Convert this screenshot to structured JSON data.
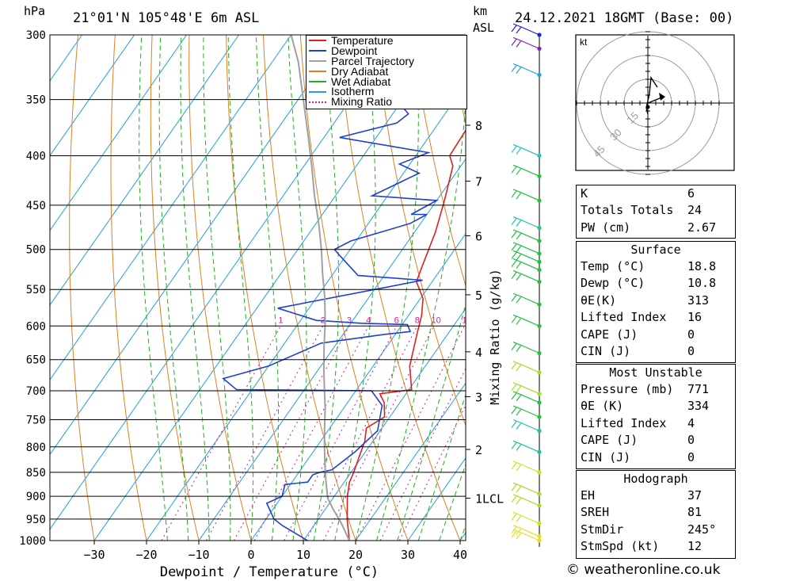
{
  "header": {
    "hpa": "hPa",
    "location": "21°01'N 105°48'E 6m ASL",
    "km": "km",
    "asl": "ASL",
    "datetime": "24.12.2021 18GMT (Base: 00)"
  },
  "chart_data": {
    "type": "line",
    "xlabel": "Dewpoint / Temperature (°C)",
    "ylabel": "hPa",
    "right_label": "Mixing Ratio (g/kg)",
    "xlim": [
      -40,
      40
    ],
    "ylim": [
      1000,
      300
    ],
    "x_ticks": [
      -30,
      -20,
      -10,
      0,
      10,
      20,
      30,
      40
    ],
    "x_tick_labels": [
      "−30",
      "−20",
      "−10",
      "0",
      "10",
      "20",
      "30",
      "40"
    ],
    "pressure_levels": [
      300,
      350,
      400,
      450,
      500,
      550,
      600,
      650,
      700,
      750,
      800,
      850,
      900,
      950,
      1000
    ],
    "km_ticks": [
      {
        "label": "8",
        "p": 372
      },
      {
        "label": "7",
        "p": 425
      },
      {
        "label": "6",
        "p": 484
      },
      {
        "label": "5",
        "p": 557
      },
      {
        "label": "4",
        "p": 638
      },
      {
        "label": "3",
        "p": 710
      },
      {
        "label": "2",
        "p": 805
      },
      {
        "label": "1LCL",
        "p": 904
      }
    ],
    "mixing_ratio_labels": [
      "1",
      "2",
      "3",
      "4",
      "6",
      "8",
      "10",
      "15",
      "20",
      "25"
    ],
    "legend": [
      {
        "name": "Temperature",
        "color": "#e02020"
      },
      {
        "name": "Dewpoint",
        "color": "#2040d0"
      },
      {
        "name": "Parcel Trajectory",
        "color": "#a0a0a0"
      },
      {
        "name": "Dry Adiabat",
        "color": "#e08020"
      },
      {
        "name": "Wet Adiabat",
        "color": "#20b020"
      },
      {
        "name": "Isotherm",
        "color": "#20a0e0"
      },
      {
        "name": "Mixing Ratio",
        "color": "#d02090"
      }
    ],
    "series": [
      {
        "name": "Temperature",
        "color": "#e02020",
        "points": [
          [
            18.8,
            1000
          ],
          [
            15.5,
            950
          ],
          [
            12.5,
            900
          ],
          [
            11,
            870
          ],
          [
            10.5,
            850
          ],
          [
            9.5,
            820
          ],
          [
            8.5,
            790
          ],
          [
            7,
            765
          ],
          [
            9,
            745
          ],
          [
            7,
            720
          ],
          [
            5,
            705
          ],
          [
            10.5,
            698
          ],
          [
            7,
            660
          ],
          [
            4,
            610
          ],
          [
            2.5,
            585
          ],
          [
            0.5,
            562
          ],
          [
            -3,
            540
          ],
          [
            -4,
            520
          ],
          [
            -6,
            480
          ],
          [
            -8.5,
            445
          ],
          [
            -11.5,
            410
          ],
          [
            -13.5,
            400
          ],
          [
            -14,
            365
          ],
          [
            -17,
            345
          ],
          [
            -21.5,
            325
          ],
          [
            -26,
            303
          ]
        ]
      },
      {
        "name": "Dewpoint",
        "color": "#2040d0",
        "points": [
          [
            10.8,
            1000
          ],
          [
            4,
            965
          ],
          [
            1.5,
            950
          ],
          [
            -2,
            915
          ],
          [
            0,
            900
          ],
          [
            -1,
            875
          ],
          [
            3,
            870
          ],
          [
            3,
            855
          ],
          [
            4,
            850
          ],
          [
            6,
            845
          ],
          [
            8,
            810
          ],
          [
            9.5,
            770
          ],
          [
            7,
            725
          ],
          [
            3,
            700
          ],
          [
            -23,
            698
          ],
          [
            -27,
            680
          ],
          [
            -20,
            660
          ],
          [
            -13,
            625
          ],
          [
            -2,
            612
          ],
          [
            2.5,
            608
          ],
          [
            1,
            598
          ],
          [
            -8,
            596
          ],
          [
            -17,
            592
          ],
          [
            -26,
            575
          ],
          [
            -2,
            538
          ],
          [
            -15,
            532
          ],
          [
            -21,
            508
          ],
          [
            -23,
            500
          ],
          [
            -21,
            490
          ],
          [
            -12,
            470
          ],
          [
            -10,
            460
          ],
          [
            -13,
            460
          ],
          [
            -10,
            445
          ],
          [
            -23,
            440
          ],
          [
            -17,
            417
          ],
          [
            -22,
            408
          ],
          [
            -18,
            397
          ],
          [
            -37,
            383
          ],
          [
            -28,
            370
          ],
          [
            -27,
            362
          ],
          [
            -32,
            348
          ],
          [
            -44,
            325
          ],
          [
            -53,
            300
          ]
        ]
      },
      {
        "name": "Parcel Trajectory",
        "color": "#a0a0a0",
        "points": [
          [
            18.8,
            1000
          ],
          [
            15,
            960
          ],
          [
            11.5,
            928
          ],
          [
            9,
            904
          ],
          [
            6.5,
            870
          ],
          [
            4,
            835
          ],
          [
            1.5,
            800
          ],
          [
            -1,
            765
          ],
          [
            -3.5,
            730
          ],
          [
            -6,
            700
          ],
          [
            -9,
            665
          ],
          [
            -12,
            630
          ],
          [
            -15,
            595
          ],
          [
            -18.5,
            560
          ],
          [
            -22,
            530
          ],
          [
            -25.5,
            500
          ],
          [
            -29.5,
            470
          ],
          [
            -34,
            440
          ],
          [
            -38.5,
            410
          ],
          [
            -43.5,
            380
          ],
          [
            -49,
            350
          ],
          [
            -55,
            320
          ],
          [
            -60,
            300
          ]
        ]
      }
    ],
    "hodograph": {
      "unit": "kt",
      "ring_labels": [
        "15",
        "30",
        "45"
      ]
    },
    "wind_profile": [
      {
        "p": 300,
        "color": "#2020e0"
      },
      {
        "p": 310,
        "color": "#8020c0"
      },
      {
        "p": 330,
        "color": "#20a0e0"
      },
      {
        "p": 400,
        "color": "#20c0c0"
      },
      {
        "p": 420,
        "color": "#20c040"
      },
      {
        "p": 445,
        "color": "#20c040"
      },
      {
        "p": 475,
        "color": "#20c0a0"
      },
      {
        "p": 490,
        "color": "#20c040"
      },
      {
        "p": 505,
        "color": "#20c040"
      },
      {
        "p": 515,
        "color": "#20c040"
      },
      {
        "p": 525,
        "color": "#20c040"
      },
      {
        "p": 540,
        "color": "#20c040"
      },
      {
        "p": 570,
        "color": "#20c040"
      },
      {
        "p": 600,
        "color": "#20c040"
      },
      {
        "p": 640,
        "color": "#20c040"
      },
      {
        "p": 670,
        "color": "#a0e020"
      },
      {
        "p": 705,
        "color": "#a0e020"
      },
      {
        "p": 720,
        "color": "#20c040"
      },
      {
        "p": 745,
        "color": "#20c040"
      },
      {
        "p": 770,
        "color": "#20c0a0"
      },
      {
        "p": 810,
        "color": "#20c0a0"
      },
      {
        "p": 850,
        "color": "#d0e020"
      },
      {
        "p": 895,
        "color": "#a0e020"
      },
      {
        "p": 920,
        "color": "#a0e020"
      },
      {
        "p": 960,
        "color": "#d0e020"
      },
      {
        "p": 990,
        "color": "#e0e020"
      },
      {
        "p": 1000,
        "color": "#e0e020"
      }
    ]
  },
  "indices": {
    "rows": [
      {
        "label": "K",
        "value": "6"
      },
      {
        "label": "Totals Totals",
        "value": "24"
      },
      {
        "label": "PW (cm)",
        "value": "2.67"
      }
    ]
  },
  "surface": {
    "title": "Surface",
    "rows": [
      {
        "label": "Temp (°C)",
        "value": "18.8"
      },
      {
        "label": "Dewp (°C)",
        "value": "10.8"
      },
      {
        "label": "θE(K)",
        "value": "313"
      },
      {
        "label": "Lifted Index",
        "value": "16"
      },
      {
        "label": "CAPE (J)",
        "value": "0"
      },
      {
        "label": "CIN (J)",
        "value": "0"
      }
    ]
  },
  "most_unstable": {
    "title": "Most Unstable",
    "rows": [
      {
        "label": "Pressure (mb)",
        "value": "771"
      },
      {
        "label": "θE (K)",
        "value": "334"
      },
      {
        "label": "Lifted Index",
        "value": "4"
      },
      {
        "label": "CAPE (J)",
        "value": "0"
      },
      {
        "label": "CIN (J)",
        "value": "0"
      }
    ]
  },
  "hodograph_table": {
    "title": "Hodograph",
    "rows": [
      {
        "label": "EH",
        "value": "37"
      },
      {
        "label": "SREH",
        "value": "81"
      },
      {
        "label": "StmDir",
        "value": "245°"
      },
      {
        "label": "StmSpd (kt)",
        "value": "12"
      }
    ]
  },
  "credit": "© weatheronline.co.uk"
}
